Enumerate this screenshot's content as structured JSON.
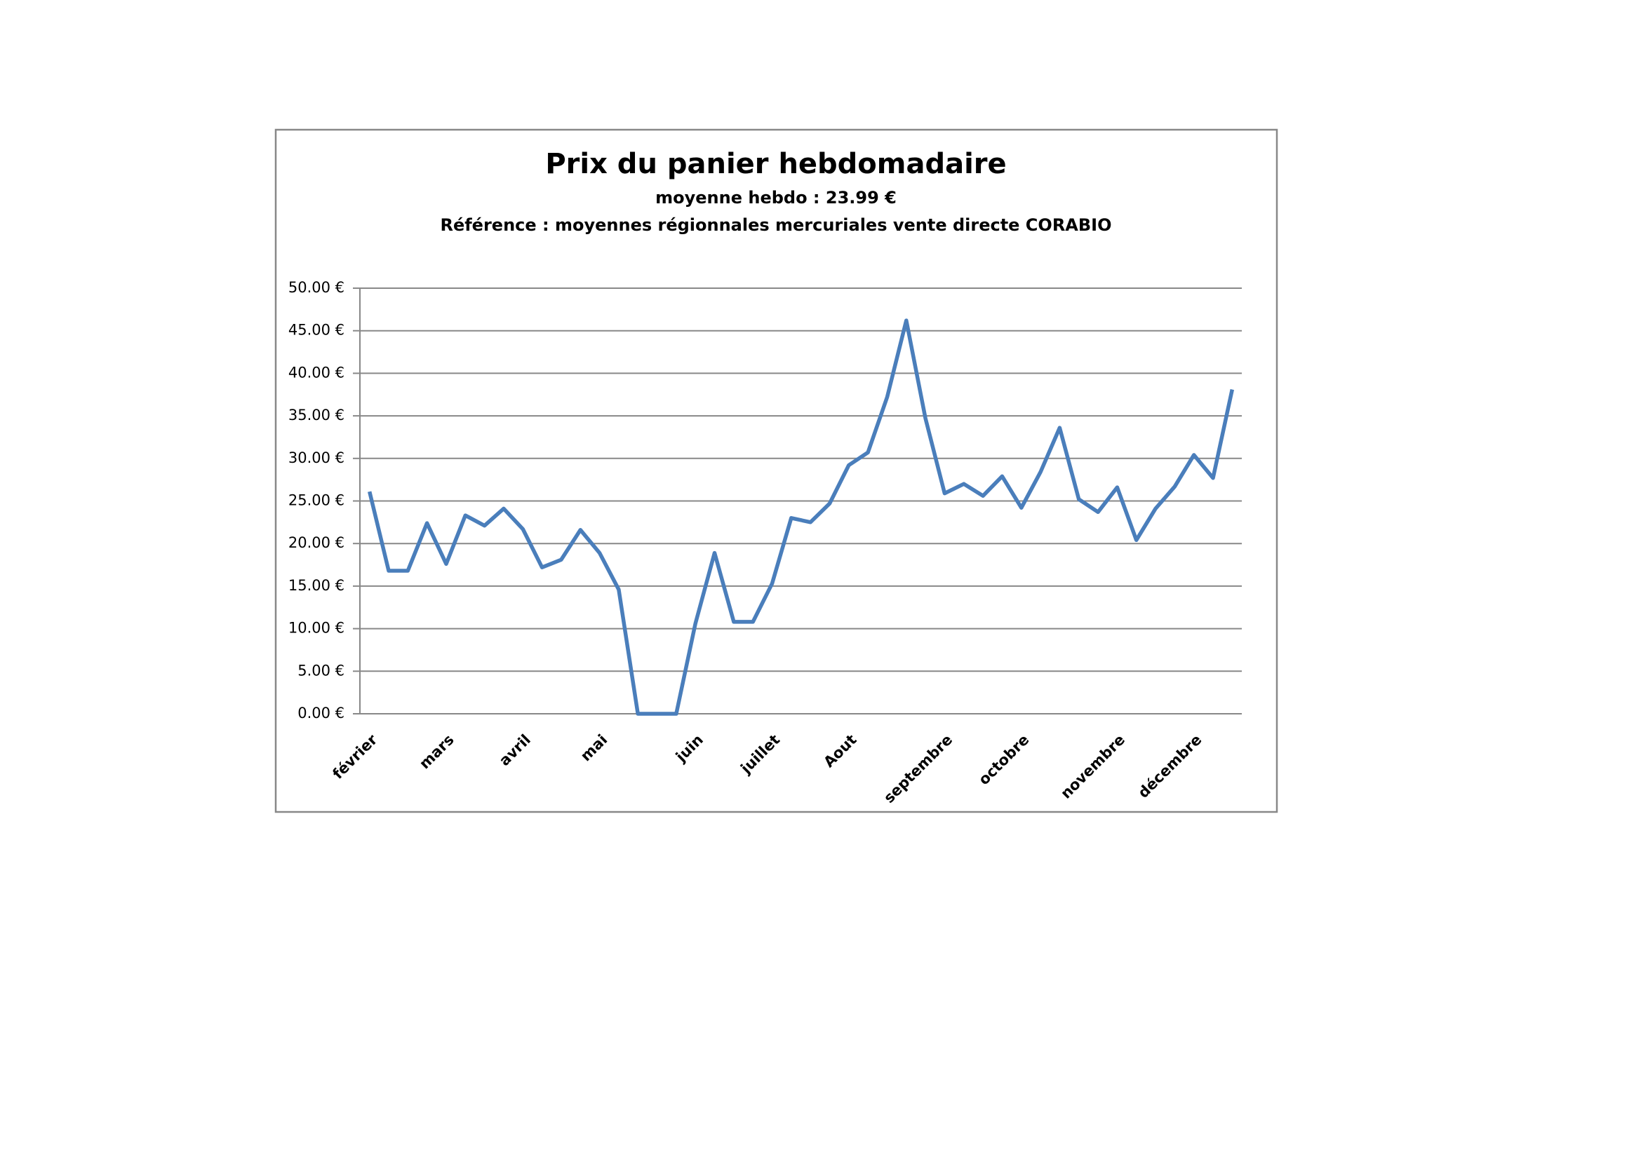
{
  "chart_data": {
    "type": "line",
    "title": "Prix du panier hebdomadaire",
    "subtitles": [
      "moyenne hebdo : 23.99 €",
      "Référence : moyennes régionnales mercuriales vente directe CORABIO"
    ],
    "categories": [
      "février",
      null,
      null,
      null,
      "mars",
      null,
      null,
      null,
      "avril",
      null,
      null,
      null,
      "mai",
      null,
      null,
      null,
      null,
      "juin",
      null,
      null,
      null,
      "juillet",
      null,
      null,
      null,
      "Aout",
      null,
      null,
      null,
      null,
      "septembre",
      null,
      null,
      null,
      "octobre",
      null,
      null,
      null,
      null,
      "novembre",
      null,
      null,
      null,
      "décembre",
      null,
      null
    ],
    "values": [
      26.1,
      16.8,
      16.8,
      22.4,
      17.6,
      23.3,
      22.1,
      24.1,
      21.7,
      17.2,
      18.1,
      21.6,
      18.9,
      14.6,
      0,
      0,
      0,
      10.6,
      18.9,
      10.8,
      10.8,
      15.3,
      23.0,
      22.5,
      24.7,
      29.2,
      30.7,
      37.2,
      46.2,
      34.7,
      25.9,
      27.0,
      25.6,
      27.9,
      24.2,
      28.4,
      33.6,
      25.2,
      23.7,
      26.6,
      20.4,
      24.1,
      26.7,
      30.4,
      27.7,
      38.1
    ],
    "color": "#4a7ebb",
    "ylim": [
      0,
      50
    ],
    "yticks": [
      {
        "value": 0,
        "label": "0.00 €"
      },
      {
        "value": 5,
        "label": "5.00 €"
      },
      {
        "value": 10,
        "label": "10.00 €"
      },
      {
        "value": 15,
        "label": "15.00 €"
      },
      {
        "value": 20,
        "label": "20.00 €"
      },
      {
        "value": 25,
        "label": "25.00 €"
      },
      {
        "value": 30,
        "label": "30.00 €"
      },
      {
        "value": 35,
        "label": "35.00 €"
      },
      {
        "value": 40,
        "label": "40.00 €"
      },
      {
        "value": 45,
        "label": "45.00 €"
      },
      {
        "value": 50,
        "label": "50.00 €"
      }
    ],
    "grid": true
  }
}
